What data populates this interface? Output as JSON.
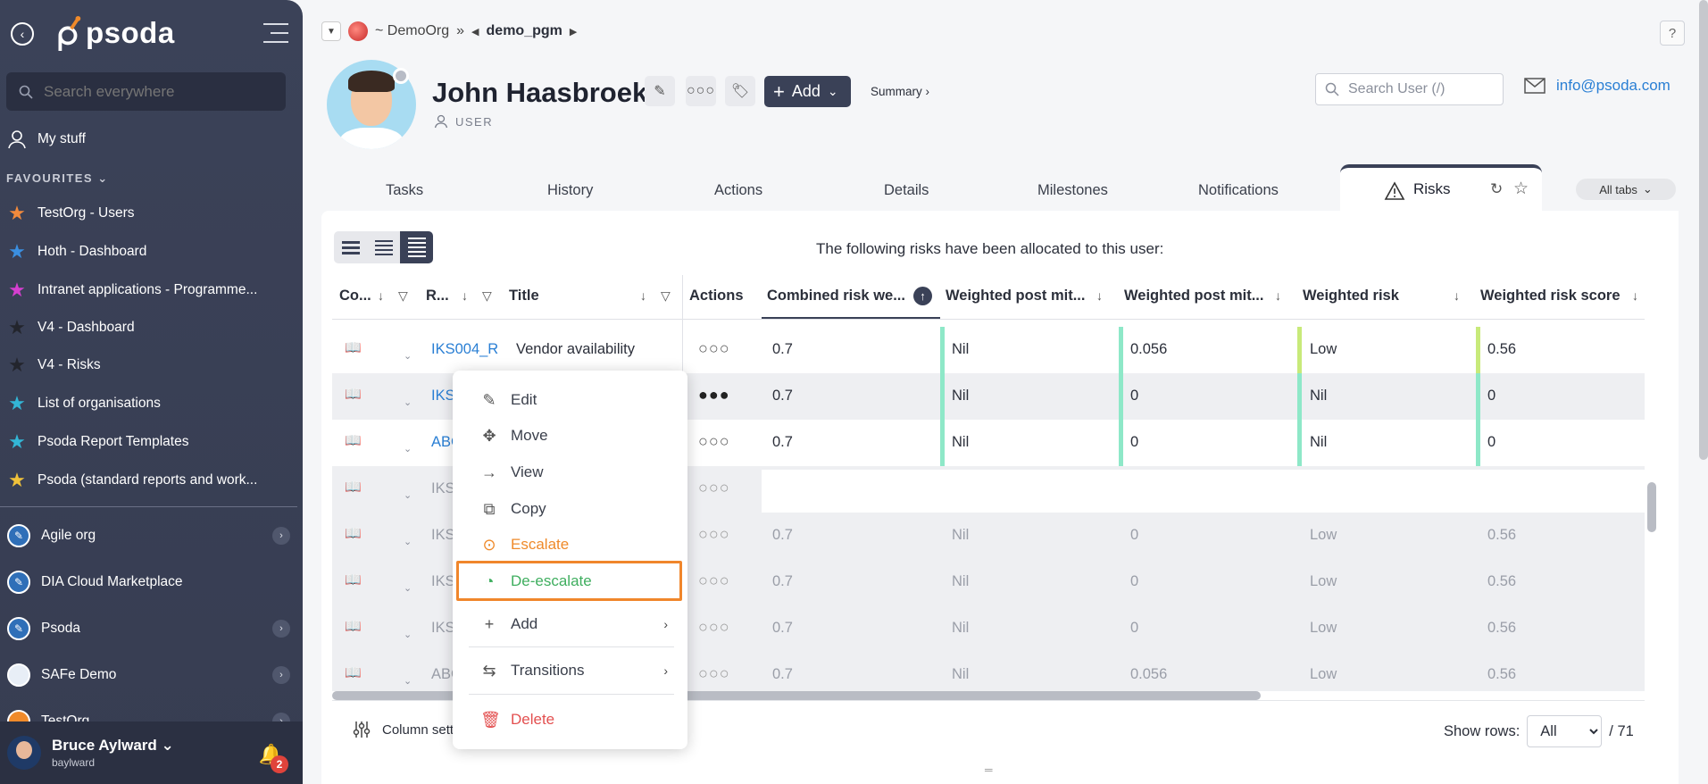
{
  "sidebar": {
    "logo": "psoda",
    "search_placeholder": "Search everywhere",
    "my_stuff": "My stuff",
    "favourites_label": "FAVOURITES",
    "favourites": [
      {
        "label": "TestOrg - Users",
        "color": "#f28a3c"
      },
      {
        "label": "Hoth - Dashboard",
        "color": "#3b8fe0"
      },
      {
        "label": "Intranet applications - Programme...",
        "color": "#d63fd0"
      },
      {
        "label": "V4 - Dashboard",
        "color": "#2d2f38"
      },
      {
        "label": "V4 - Risks",
        "color": "#2d2f38"
      },
      {
        "label": "List of organisations",
        "color": "#33b6d6"
      },
      {
        "label": "Psoda Report Templates",
        "color": "#33b6d6"
      },
      {
        "label": "Psoda (standard reports and work...",
        "color": "#f0c23a"
      }
    ],
    "orgs": [
      {
        "label": "Agile org"
      },
      {
        "label": "DIA Cloud Marketplace"
      },
      {
        "label": "Psoda"
      },
      {
        "label": "SAFe Demo"
      },
      {
        "label": "TestOrg"
      }
    ],
    "user": {
      "name": "Bruce Aylward",
      "username": "baylward",
      "notifications": "2"
    }
  },
  "breadcrumb": {
    "org": "~ DemoOrg",
    "separator": "»",
    "program": "demo_pgm"
  },
  "help": "?",
  "profile": {
    "name": "John Haasbroek",
    "role": "USER",
    "add_label": "Add",
    "summary_label": "Summary ›",
    "user_search_placeholder": "Search User (/)",
    "email": "info@psoda.com"
  },
  "tabs": [
    "Tasks",
    "History",
    "Actions",
    "Details",
    "Milestones",
    "Notifications"
  ],
  "active_tab": "Risks",
  "all_tabs_label": "All tabs",
  "panel": {
    "info": "The following risks have been allocated to this user:"
  },
  "table": {
    "headers": {
      "col1": "Co...",
      "col2": "R...",
      "title": "Title",
      "actions": "Actions",
      "combined": "Combined risk we...",
      "wpm1": "Weighted post mit...",
      "wpm2": "Weighted post mit...",
      "wrisk": "Weighted risk",
      "wscore": "Weighted risk score"
    },
    "rows": [
      {
        "ref": "IKS004_R",
        "title": "Vendor availability",
        "combined": "0.7",
        "wpm1": "Nil",
        "wpm2": "0.056",
        "wrisk": "Low",
        "wscore": "0.56"
      },
      {
        "ref": "IKS",
        "title": "",
        "combined": "0.7",
        "wpm1": "Nil",
        "wpm2": "0",
        "wrisk": "Nil",
        "wscore": "0"
      },
      {
        "ref": "ABC",
        "title": "",
        "combined": "0.7",
        "wpm1": "Nil",
        "wpm2": "0",
        "wrisk": "Nil",
        "wscore": "0"
      },
      {
        "ref": "IKS",
        "title": "",
        "combined": "",
        "wpm1": "",
        "wpm2": "",
        "wrisk": "",
        "wscore": ""
      },
      {
        "ref": "IKS",
        "title": "",
        "combined": "0.7",
        "wpm1": "Nil",
        "wpm2": "0",
        "wrisk": "Low",
        "wscore": "0.56"
      },
      {
        "ref": "IKS",
        "title": "",
        "combined": "0.7",
        "wpm1": "Nil",
        "wpm2": "0",
        "wrisk": "Low",
        "wscore": "0.56"
      },
      {
        "ref": "IKS",
        "title": "",
        "combined": "0.7",
        "wpm1": "Nil",
        "wpm2": "0",
        "wrisk": "Low",
        "wscore": "0.56"
      },
      {
        "ref": "ABC",
        "title": "",
        "combined": "0.7",
        "wpm1": "Nil",
        "wpm2": "0.056",
        "wrisk": "Low",
        "wscore": "0.56"
      }
    ]
  },
  "footer": {
    "column_settings": "Column setti",
    "show_rows_label": "Show rows:",
    "show_rows_value": "All",
    "total": "/ 71"
  },
  "context_menu": {
    "edit": "Edit",
    "move": "Move",
    "view": "View",
    "copy": "Copy",
    "escalate": "Escalate",
    "deescalate": "De-escalate",
    "add": "Add",
    "transitions": "Transitions",
    "delete": "Delete"
  }
}
